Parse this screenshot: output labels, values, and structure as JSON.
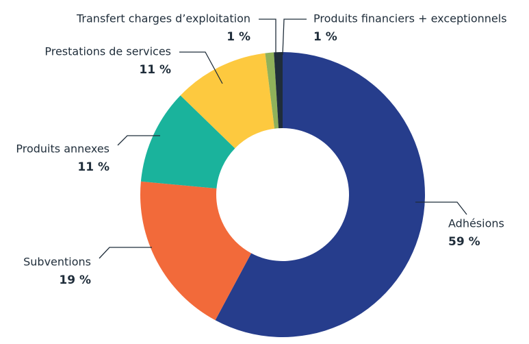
{
  "chart_data": {
    "type": "donut",
    "categories": [
      "Adhésions",
      "Subventions",
      "Produits annexes",
      "Prestations de services",
      "Transfert charges d’exploitation",
      "Produits financiers + exceptionnels"
    ],
    "values": [
      59,
      19,
      11,
      11,
      1,
      1
    ],
    "value_labels": [
      "59 %",
      "19 %",
      "11 %",
      "11 %",
      "1 %",
      "1 %"
    ],
    "colors": [
      "#263d8c",
      "#f26a3a",
      "#1ab39c",
      "#fdc93f",
      "#8fb15a",
      "#1f2d3a"
    ]
  }
}
